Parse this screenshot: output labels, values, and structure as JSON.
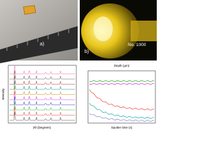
{
  "panels": {
    "a": {
      "label": "a)"
    },
    "b": {
      "label": "b)",
      "sample_text": "No. 1000"
    },
    "c": {
      "y_axis_label": "Intensity",
      "x_axis_label": "2θ (Degrees)"
    },
    "d": {
      "top_axis_label": "Depth (μm)",
      "x_axis_label": "Sputter time (s)"
    }
  }
}
